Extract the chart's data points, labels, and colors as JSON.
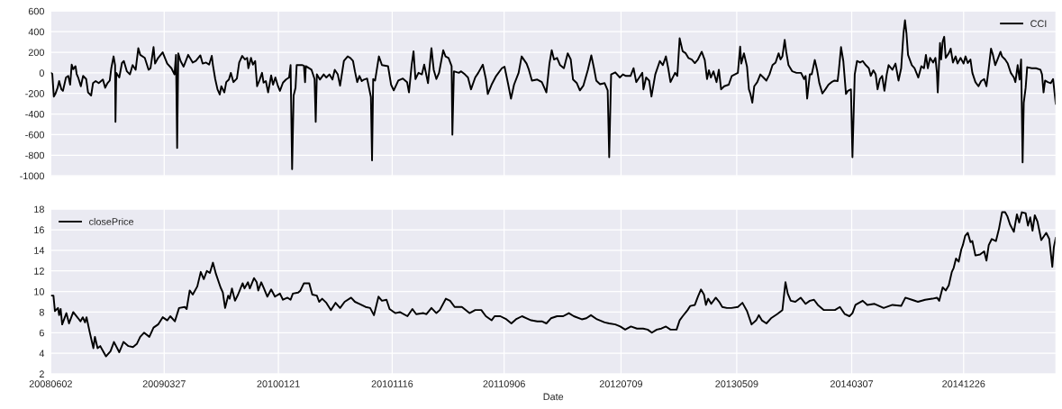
{
  "chart_data": [
    {
      "type": "line",
      "legend": "top right",
      "grid": true,
      "tick_labels": "y",
      "xlim": [
        "2008-06-02",
        "2015-08-25"
      ],
      "xticks": [
        "2008-06-02",
        "2009-03-27",
        "2010-01-21",
        "2010-11-16",
        "2011-09-06",
        "2012-07-09",
        "2013-05-09",
        "2014-03-07",
        "2014-12-26"
      ],
      "ylim": [
        -1000,
        600
      ],
      "yticks": [
        -1000,
        -800,
        -600,
        -400,
        -200,
        0,
        200,
        400,
        600
      ],
      "x": [
        "2008-06-02",
        "2008-06-06",
        "2008-06-10",
        "2008-06-14",
        "2008-06-20",
        "2008-06-24",
        "2008-06-30",
        "2008-07-04",
        "2008-07-12",
        "2008-07-18",
        "2008-07-23",
        "2008-07-27",
        "2008-07-31",
        "2008-08-06",
        "2008-08-09",
        "2008-08-13",
        "2008-08-20",
        "2008-08-26",
        "2008-09-03",
        "2008-09-08",
        "2008-09-16",
        "2008-09-21",
        "2008-09-28",
        "2008-10-06",
        "2008-10-17",
        "2008-10-23",
        "2008-10-29",
        "2008-11-04",
        "2008-11-08",
        "2008-11-14",
        "2008-11-18",
        "2008-11-19",
        "2008-11-21",
        "2008-11-29",
        "2008-12-06",
        "2008-12-11",
        "2008-12-19",
        "2008-12-27",
        "2009-01-03",
        "2009-01-11",
        "2009-01-18",
        "2009-01-23",
        "2009-02-04",
        "2009-02-14",
        "2009-02-19",
        "2009-02-27",
        "2009-03-03",
        "2009-03-11",
        "2009-03-23",
        "2009-04-04",
        "2009-04-15",
        "2009-04-23",
        "2009-04-27",
        "2009-04-30",
        "2009-05-03",
        "2009-05-09",
        "2009-05-17",
        "2009-05-29",
        "2009-06-10",
        "2009-06-18",
        "2009-06-30",
        "2009-07-06",
        "2009-07-15",
        "2009-07-23",
        "2009-07-30",
        "2009-08-02",
        "2009-08-08",
        "2009-08-14",
        "2009-08-20",
        "2009-08-24",
        "2009-09-01",
        "2009-09-06",
        "2009-09-13",
        "2009-09-18",
        "2009-09-25",
        "2009-10-04",
        "2009-10-10",
        "2009-10-18",
        "2009-10-25",
        "2009-10-31",
        "2009-11-03",
        "2009-11-10",
        "2009-11-15",
        "2009-11-21",
        "2009-11-26",
        "2009-12-03",
        "2009-12-09",
        "2009-12-13",
        "2009-12-19",
        "2009-12-25",
        "2010-01-02",
        "2010-01-07",
        "2010-01-13",
        "2010-01-20",
        "2010-01-25",
        "2010-02-02",
        "2010-02-10",
        "2010-02-18",
        "2010-02-22",
        "2010-02-26",
        "2010-03-02",
        "2010-03-07",
        "2010-03-10",
        "2010-03-25",
        "2010-03-29",
        "2010-04-01",
        "2010-04-03",
        "2010-04-18",
        "2010-04-26",
        "2010-04-29",
        "2010-05-02",
        "2010-05-10",
        "2010-05-20",
        "2010-05-27",
        "2010-06-04",
        "2010-06-12",
        "2010-06-18",
        "2010-06-26",
        "2010-07-02",
        "2010-07-12",
        "2010-07-22",
        "2010-07-29",
        "2010-08-05",
        "2010-08-10",
        "2010-08-16",
        "2010-08-22",
        "2010-08-28",
        "2010-09-03",
        "2010-09-11",
        "2010-09-16",
        "2010-09-21",
        "2010-09-24",
        "2010-09-27",
        "2010-10-02",
        "2010-10-12",
        "2010-10-20",
        "2010-11-05",
        "2010-11-13",
        "2010-11-20",
        "2010-12-02",
        "2010-12-14",
        "2010-12-25",
        "2010-12-30",
        "2011-01-06",
        "2011-01-11",
        "2011-01-16",
        "2011-01-24",
        "2011-02-02",
        "2011-02-08",
        "2011-02-18",
        "2011-02-27",
        "2011-03-05",
        "2011-03-12",
        "2011-03-19",
        "2011-03-30",
        "2011-04-05",
        "2011-04-13",
        "2011-04-21",
        "2011-04-23",
        "2011-04-27",
        "2011-05-10",
        "2011-05-16",
        "2011-05-26",
        "2011-06-03",
        "2011-06-11",
        "2011-06-22",
        "2011-06-30",
        "2011-07-12",
        "2011-07-20",
        "2011-07-25",
        "2011-08-04",
        "2011-08-16",
        "2011-08-31",
        "2011-09-07",
        "2011-09-16",
        "2011-09-24",
        "2011-10-02",
        "2011-10-14",
        "2011-10-22",
        "2011-11-04",
        "2011-11-10",
        "2011-11-18",
        "2011-12-02",
        "2011-12-14",
        "2011-12-26",
        "2012-01-03",
        "2012-01-09",
        "2012-01-15",
        "2012-01-23",
        "2012-01-31",
        "2012-02-10",
        "2012-02-20",
        "2012-02-28",
        "2012-03-05",
        "2012-03-15",
        "2012-03-23",
        "2012-04-01",
        "2012-04-13",
        "2012-04-22",
        "2012-04-29",
        "2012-05-05",
        "2012-05-15",
        "2012-05-27",
        "2012-06-04",
        "2012-06-08",
        "2012-06-13",
        "2012-06-24",
        "2012-07-06",
        "2012-07-14",
        "2012-07-22",
        "2012-08-03",
        "2012-08-11",
        "2012-08-18",
        "2012-08-26",
        "2012-09-03",
        "2012-09-06",
        "2012-09-13",
        "2012-09-21",
        "2012-09-27",
        "2012-10-07",
        "2012-10-19",
        "2012-10-27",
        "2012-11-04",
        "2012-11-10",
        "2012-11-16",
        "2012-11-28",
        "2012-12-04",
        "2012-12-10",
        "2012-12-18",
        "2012-12-26",
        "2013-01-02",
        "2013-01-11",
        "2013-01-19",
        "2013-01-27",
        "2013-02-06",
        "2013-02-14",
        "2013-02-20",
        "2013-02-25",
        "2013-03-02",
        "2013-03-09",
        "2013-03-17",
        "2013-03-23",
        "2013-03-29",
        "2013-04-06",
        "2013-04-18",
        "2013-04-26",
        "2013-05-04",
        "2013-05-12",
        "2013-05-18",
        "2013-05-21",
        "2013-05-28",
        "2013-06-05",
        "2013-06-10",
        "2013-06-14",
        "2013-06-19",
        "2013-06-24",
        "2013-07-02",
        "2013-07-10",
        "2013-07-18",
        "2013-07-26",
        "2013-08-03",
        "2013-08-11",
        "2013-08-19",
        "2013-08-27",
        "2013-09-01",
        "2013-09-06",
        "2013-09-12",
        "2013-09-16",
        "2013-09-22",
        "2013-10-02",
        "2013-10-13",
        "2013-10-25",
        "2013-11-02",
        "2013-11-06",
        "2013-11-10",
        "2013-11-17",
        "2013-11-22",
        "2013-11-30",
        "2013-12-06",
        "2013-12-12",
        "2013-12-20",
        "2013-12-28",
        "2014-01-05",
        "2014-01-13",
        "2014-01-21",
        "2014-01-29",
        "2014-02-01",
        "2014-02-07",
        "2014-02-13",
        "2014-02-20",
        "2014-02-25",
        "2014-03-05",
        "2014-03-09",
        "2014-03-15",
        "2014-03-21",
        "2014-03-29",
        "2014-04-05",
        "2014-04-13",
        "2014-04-21",
        "2014-04-26",
        "2014-05-03",
        "2014-05-09",
        "2014-05-14",
        "2014-05-20",
        "2014-05-26",
        "2014-06-01",
        "2014-06-07",
        "2014-06-12",
        "2014-06-22",
        "2014-06-30",
        "2014-07-08",
        "2014-07-15",
        "2014-07-21",
        "2014-07-25",
        "2014-07-29",
        "2014-08-02",
        "2014-08-12",
        "2014-08-19",
        "2014-08-29",
        "2014-09-06",
        "2014-09-13",
        "2014-09-18",
        "2014-09-23",
        "2014-09-29",
        "2014-10-07",
        "2014-10-13",
        "2014-10-17",
        "2014-10-19",
        "2014-10-25",
        "2014-10-28",
        "2014-11-01",
        "2014-11-05",
        "2014-11-09",
        "2014-11-17",
        "2014-11-22",
        "2014-11-28",
        "2014-12-05",
        "2014-12-10",
        "2014-12-18",
        "2014-12-26",
        "2014-12-31",
        "2015-01-06",
        "2015-01-13",
        "2015-01-18",
        "2015-01-26",
        "2015-02-03",
        "2015-02-10",
        "2015-02-18",
        "2015-02-24",
        "2015-03-02",
        "2015-03-08",
        "2015-03-13",
        "2015-03-19",
        "2015-03-25",
        "2015-04-02",
        "2015-04-06",
        "2015-04-14",
        "2015-04-21",
        "2015-04-29",
        "2015-05-07",
        "2015-05-11",
        "2015-05-17",
        "2015-05-22",
        "2015-05-26",
        "2015-05-30",
        "2015-06-02",
        "2015-06-07",
        "2015-06-11",
        "2015-06-23",
        "2015-07-04",
        "2015-07-16",
        "2015-07-20",
        "2015-07-24",
        "2015-07-28",
        "2015-08-04",
        "2015-08-12",
        "2015-08-18",
        "2015-08-25"
      ],
      "series": [
        {
          "name": "CCI",
          "color": "#000000",
          "values": [
            0,
            -10,
            -230,
            -205,
            -145,
            -80,
            -160,
            -175,
            -45,
            -30,
            -115,
            80,
            35,
            65,
            -10,
            -45,
            -130,
            -30,
            -60,
            -190,
            -220,
            -100,
            -80,
            -100,
            -65,
            -145,
            -100,
            -75,
            45,
            160,
            75,
            -475,
            0,
            -45,
            95,
            115,
            15,
            -15,
            75,
            30,
            240,
            175,
            145,
            30,
            45,
            250,
            90,
            145,
            200,
            90,
            45,
            -15,
            175,
            -730,
            190,
            115,
            60,
            175,
            100,
            115,
            170,
            90,
            100,
            80,
            165,
            75,
            -60,
            -160,
            -210,
            -130,
            -190,
            -90,
            -65,
            0,
            -90,
            -55,
            100,
            165,
            130,
            145,
            45,
            145,
            80,
            115,
            -130,
            -65,
            0,
            -95,
            -80,
            -190,
            -25,
            -115,
            -45,
            -130,
            -175,
            -95,
            -65,
            -45,
            75,
            -935,
            -220,
            -145,
            75,
            75,
            70,
            -90,
            65,
            30,
            -60,
            -475,
            -15,
            -65,
            -15,
            -45,
            -15,
            -65,
            30,
            -15,
            -125,
            115,
            160,
            145,
            115,
            15,
            -90,
            -30,
            -80,
            -65,
            -55,
            -145,
            -235,
            -850,
            -60,
            -75,
            160,
            75,
            65,
            -115,
            -170,
            -75,
            -55,
            -90,
            -190,
            75,
            210,
            -60,
            0,
            -15,
            80,
            -100,
            240,
            30,
            -60,
            0,
            220,
            160,
            145,
            65,
            -600,
            15,
            0,
            15,
            -15,
            -45,
            -160,
            -45,
            0,
            80,
            -60,
            -205,
            -115,
            -30,
            45,
            60,
            -100,
            -250,
            -115,
            0,
            160,
            90,
            30,
            -75,
            -65,
            -90,
            -190,
            90,
            220,
            130,
            145,
            75,
            45,
            190,
            130,
            -65,
            -100,
            -170,
            -125,
            30,
            170,
            45,
            -75,
            -110,
            -100,
            -170,
            -820,
            -15,
            5,
            -45,
            -15,
            -30,
            -30,
            45,
            -90,
            -45,
            0,
            -160,
            -45,
            -75,
            -230,
            -15,
            115,
            75,
            160,
            45,
            -90,
            0,
            -30,
            335,
            210,
            190,
            145,
            130,
            95,
            130,
            205,
            125,
            -60,
            25,
            -45,
            15,
            -90,
            30,
            -160,
            -130,
            -115,
            -30,
            -15,
            0,
            255,
            90,
            190,
            60,
            -160,
            -205,
            -290,
            -130,
            -90,
            -15,
            -45,
            -75,
            -15,
            75,
            100,
            190,
            130,
            160,
            320,
            205,
            75,
            15,
            0,
            0,
            -60,
            -30,
            -250,
            -15,
            -15,
            125,
            30,
            -100,
            -200,
            -160,
            -115,
            -90,
            -75,
            -80,
            15,
            250,
            115,
            -205,
            -175,
            -160,
            -820,
            -15,
            115,
            100,
            115,
            75,
            45,
            -30,
            25,
            -15,
            -160,
            -60,
            -30,
            -175,
            -15,
            75,
            30,
            90,
            -75,
            45,
            380,
            510,
            380,
            175,
            75,
            45,
            -45,
            65,
            45,
            175,
            45,
            145,
            100,
            145,
            0,
            -190,
            290,
            130,
            305,
            350,
            145,
            190,
            235,
            100,
            160,
            90,
            145,
            90,
            160,
            95,
            130,
            0,
            -90,
            -130,
            -80,
            -60,
            -130,
            45,
            235,
            175,
            75,
            130,
            205,
            160,
            130,
            90,
            0,
            -45,
            -90,
            75,
            -65,
            130,
            -870,
            -290,
            -145,
            55,
            45,
            45,
            30,
            -15,
            -190,
            -75,
            -90,
            -100,
            -60,
            -300
          ]
        }
      ]
    },
    {
      "type": "line",
      "legend": "top left",
      "grid": true,
      "xlabel": "Date",
      "xlim": [
        "2008-06-02",
        "2015-08-25"
      ],
      "xticks": [
        {
          "value": "2008-06-02",
          "label": "20080602"
        },
        {
          "value": "2009-03-27",
          "label": "20090327"
        },
        {
          "value": "2010-01-21",
          "label": "20100121"
        },
        {
          "value": "2010-11-16",
          "label": "20101116"
        },
        {
          "value": "2011-09-06",
          "label": "20110906"
        },
        {
          "value": "2012-07-09",
          "label": "20120709"
        },
        {
          "value": "2013-05-09",
          "label": "20130509"
        },
        {
          "value": "2014-03-07",
          "label": "20140307"
        },
        {
          "value": "2014-12-26",
          "label": "20141226"
        }
      ],
      "ylim": [
        2,
        18
      ],
      "yticks": [
        2,
        4,
        6,
        8,
        10,
        12,
        14,
        16,
        18
      ],
      "x": [
        "2008-06-02",
        "2008-06-09",
        "2008-06-13",
        "2008-06-21",
        "2008-06-24",
        "2008-06-28",
        "2008-07-02",
        "2008-07-13",
        "2008-07-20",
        "2008-07-31",
        "2008-08-13",
        "2008-08-19",
        "2008-08-25",
        "2008-08-31",
        "2008-09-04",
        "2008-09-12",
        "2008-09-22",
        "2008-09-26",
        "2008-10-03",
        "2008-10-10",
        "2008-10-16",
        "2008-10-25",
        "2008-11-06",
        "2008-11-15",
        "2008-11-29",
        "2008-12-10",
        "2008-12-23",
        "2009-01-04",
        "2009-01-14",
        "2009-01-23",
        "2009-02-02",
        "2009-02-16",
        "2009-02-27",
        "2009-03-11",
        "2009-03-23",
        "2009-04-04",
        "2009-04-12",
        "2009-04-24",
        "2009-05-05",
        "2009-05-20",
        "2009-05-25",
        "2009-06-02",
        "2009-06-10",
        "2009-06-22",
        "2009-07-01",
        "2009-07-09",
        "2009-07-17",
        "2009-07-25",
        "2009-08-02",
        "2009-08-10",
        "2009-08-22",
        "2009-08-28",
        "2009-09-03",
        "2009-09-11",
        "2009-09-15",
        "2009-09-21",
        "2009-09-29",
        "2009-10-07",
        "2009-10-19",
        "2009-10-24",
        "2009-11-02",
        "2009-11-07",
        "2009-11-18",
        "2009-11-25",
        "2009-11-29",
        "2009-12-07",
        "2009-12-14",
        "2009-12-23",
        "2010-01-02",
        "2010-01-12",
        "2010-01-25",
        "2010-02-02",
        "2010-02-14",
        "2010-02-22",
        "2010-02-28",
        "2010-03-14",
        "2010-03-20",
        "2010-03-29",
        "2010-04-12",
        "2010-04-20",
        "2010-05-02",
        "2010-05-08",
        "2010-05-16",
        "2010-05-27",
        "2010-06-08",
        "2010-06-20",
        "2010-07-02",
        "2010-07-14",
        "2010-07-31",
        "2010-08-10",
        "2010-08-22",
        "2010-09-07",
        "2010-09-19",
        "2010-09-29",
        "2010-10-11",
        "2010-10-20",
        "2010-11-01",
        "2010-11-09",
        "2010-11-24",
        "2010-12-06",
        "2010-12-26",
        "2011-01-08",
        "2011-01-18",
        "2011-02-06",
        "2011-02-14",
        "2011-02-27",
        "2011-03-12",
        "2011-03-21",
        "2011-04-06",
        "2011-04-17",
        "2011-04-29",
        "2011-05-18",
        "2011-06-07",
        "2011-06-22",
        "2011-07-08",
        "2011-07-20",
        "2011-08-04",
        "2011-08-12",
        "2011-08-27",
        "2011-09-12",
        "2011-09-25",
        "2011-10-07",
        "2011-10-23",
        "2011-11-04",
        "2011-11-16",
        "2011-12-02",
        "2011-12-14",
        "2011-12-26",
        "2012-01-07",
        "2012-01-23",
        "2012-02-08",
        "2012-02-23",
        "2012-03-07",
        "2012-03-28",
        "2012-04-09",
        "2012-04-21",
        "2012-05-07",
        "2012-05-27",
        "2012-06-08",
        "2012-06-24",
        "2012-07-07",
        "2012-07-20",
        "2012-08-04",
        "2012-08-20",
        "2012-09-05",
        "2012-09-17",
        "2012-09-28",
        "2012-10-11",
        "2012-10-23",
        "2012-11-04",
        "2012-11-16",
        "2012-12-02",
        "2012-12-10",
        "2012-12-18",
        "2012-12-31",
        "2013-01-07",
        "2013-01-19",
        "2013-01-27",
        "2013-02-04",
        "2013-02-12",
        "2013-02-17",
        "2013-02-23",
        "2013-03-03",
        "2013-03-15",
        "2013-03-24",
        "2013-04-01",
        "2013-04-13",
        "2013-04-25",
        "2013-05-12",
        "2013-05-24",
        "2013-06-05",
        "2013-06-17",
        "2013-06-29",
        "2013-07-06",
        "2013-07-14",
        "2013-07-26",
        "2013-08-07",
        "2013-08-23",
        "2013-09-06",
        "2013-09-14",
        "2013-09-20",
        "2013-09-28",
        "2013-10-10",
        "2013-10-24",
        "2013-11-06",
        "2013-11-17",
        "2013-11-28",
        "2013-12-08",
        "2013-12-24",
        "2014-01-09",
        "2014-01-22",
        "2014-02-04",
        "2014-02-17",
        "2014-03-01",
        "2014-03-09",
        "2014-03-17",
        "2014-04-05",
        "2014-04-17",
        "2014-05-06",
        "2014-05-30",
        "2014-06-22",
        "2014-07-15",
        "2014-07-26",
        "2014-08-12",
        "2014-08-28",
        "2014-09-16",
        "2014-10-05",
        "2014-10-17",
        "2014-10-23",
        "2014-11-01",
        "2014-11-09",
        "2014-11-17",
        "2014-11-25",
        "2014-11-30",
        "2014-12-06",
        "2014-12-13",
        "2014-12-20",
        "2014-12-24",
        "2014-12-30",
        "2015-01-06",
        "2015-01-13",
        "2015-01-18",
        "2015-01-26",
        "2015-02-07",
        "2015-02-18",
        "2015-02-24",
        "2015-03-02",
        "2015-03-10",
        "2015-03-21",
        "2015-03-29",
        "2015-04-06",
        "2015-04-14",
        "2015-04-20",
        "2015-04-27",
        "2015-05-07",
        "2015-05-15",
        "2015-05-21",
        "2015-05-28",
        "2015-06-07",
        "2015-06-13",
        "2015-06-19",
        "2015-06-25",
        "2015-07-01",
        "2015-07-08",
        "2015-07-18",
        "2015-07-31",
        "2015-08-08",
        "2015-08-16",
        "2015-08-20",
        "2015-08-25"
      ],
      "series": [
        {
          "name": "closePrice",
          "color": "#000000",
          "values": [
            9.6,
            9.6,
            8.1,
            8.4,
            7.7,
            8.3,
            6.8,
            7.9,
            6.9,
            8.0,
            7.4,
            7.1,
            7.5,
            7.0,
            7.5,
            6.1,
            4.5,
            5.6,
            4.5,
            4.7,
            4.3,
            3.7,
            4.2,
            5.1,
            4.1,
            5.1,
            4.7,
            4.6,
            4.9,
            5.6,
            6.0,
            5.6,
            6.5,
            6.8,
            7.5,
            7.2,
            7.6,
            7.1,
            8.4,
            8.5,
            8.3,
            10.1,
            9.7,
            10.5,
            11.9,
            11.2,
            12.0,
            11.8,
            12.8,
            11.7,
            10.4,
            9.9,
            8.4,
            9.6,
            9.3,
            10.3,
            9.1,
            9.7,
            10.8,
            10.3,
            10.9,
            10.3,
            11.3,
            10.9,
            10.1,
            10.9,
            10.3,
            9.5,
            10.2,
            9.5,
            9.8,
            9.2,
            9.4,
            9.2,
            9.8,
            9.9,
            10.1,
            10.8,
            10.8,
            9.7,
            9.6,
            9.0,
            9.3,
            8.9,
            8.2,
            8.9,
            8.4,
            9.0,
            9.4,
            9.0,
            8.8,
            8.5,
            8.4,
            7.7,
            9.5,
            9.1,
            9.2,
            8.3,
            7.9,
            8.0,
            7.6,
            8.3,
            7.8,
            7.9,
            7.8,
            8.4,
            7.9,
            8.2,
            9.3,
            9.1,
            8.5,
            8.5,
            7.9,
            8.2,
            8.2,
            7.6,
            7.2,
            7.6,
            7.6,
            7.3,
            6.9,
            7.3,
            7.6,
            7.4,
            7.2,
            7.1,
            7.1,
            6.9,
            7.4,
            7.6,
            7.6,
            7.9,
            7.6,
            7.3,
            7.4,
            7.7,
            7.3,
            7.0,
            6.9,
            6.8,
            6.6,
            6.3,
            6.6,
            6.4,
            6.4,
            6.3,
            6.0,
            6.3,
            6.4,
            6.6,
            6.3,
            6.3,
            7.2,
            7.6,
            8.2,
            8.6,
            8.7,
            9.5,
            10.2,
            9.7,
            8.7,
            9.3,
            8.8,
            9.4,
            9.0,
            8.5,
            8.4,
            8.4,
            8.5,
            8.9,
            8.1,
            6.8,
            7.2,
            7.7,
            7.2,
            6.9,
            7.4,
            7.8,
            8.2,
            10.9,
            9.8,
            9.1,
            9.0,
            9.4,
            8.8,
            9.1,
            9.2,
            8.7,
            8.2,
            8.2,
            8.2,
            8.5,
            7.8,
            7.6,
            7.9,
            8.7,
            9.1,
            8.7,
            8.8,
            8.4,
            8.7,
            8.6,
            9.4,
            9.2,
            9.0,
            9.2,
            9.3,
            9.4,
            9.1,
            10.4,
            10.1,
            10.6,
            11.9,
            12.3,
            13.2,
            12.9,
            14.1,
            14.5,
            15.4,
            15.7,
            14.8,
            14.9,
            13.5,
            13.6,
            13.9,
            13.0,
            14.5,
            15.1,
            14.9,
            16.1,
            17.7,
            17.7,
            17.3,
            16.5,
            15.8,
            17.5,
            16.7,
            17.7,
            17.6,
            16.4,
            17.2,
            15.9,
            17.4,
            16.8,
            15.0,
            15.7,
            15.1,
            12.4,
            14.3,
            15.2
          ]
        }
      ]
    }
  ]
}
